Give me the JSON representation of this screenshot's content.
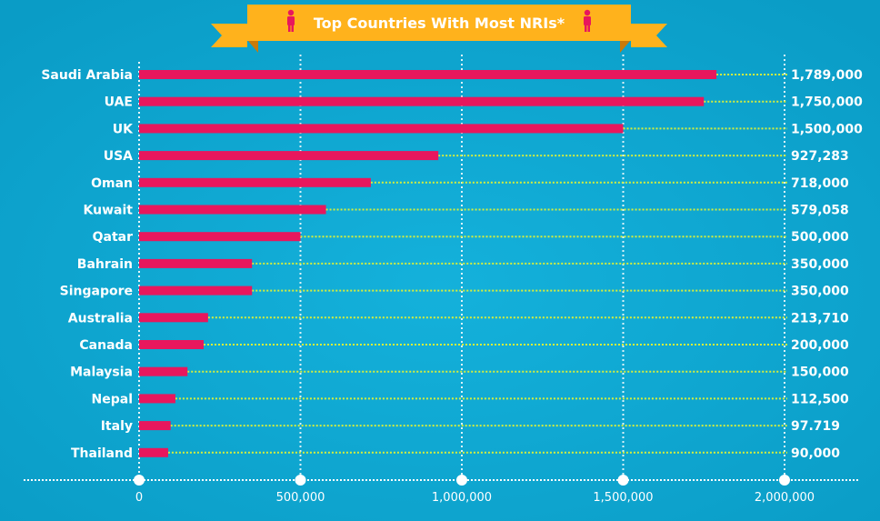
{
  "chart_data": {
    "type": "bar",
    "orientation": "horizontal",
    "title": "Top Countries With Most NRIs*",
    "categories": [
      "Saudi Arabia",
      "UAE",
      "UK",
      "USA",
      "Oman",
      "Kuwait",
      "Qatar",
      "Bahrain",
      "Singapore",
      "Australia",
      "Canada",
      "Malaysia",
      "Nepal",
      "Italy",
      "Thailand"
    ],
    "values": [
      1789000,
      1750000,
      1500000,
      927283,
      718000,
      579058,
      500000,
      350000,
      350000,
      213710,
      200000,
      150000,
      112500,
      97719,
      90000
    ],
    "value_labels": [
      "1,789,000",
      "1,750,000",
      "1,500,000",
      "927,283",
      "718,000",
      "579,058",
      "500,000",
      "350,000",
      "350,000",
      "213,710",
      "200,000",
      "150,000",
      "112,500",
      "97.719",
      "90,000"
    ],
    "xlim": [
      0,
      2000000
    ],
    "xticks": [
      0,
      500000,
      1000000,
      1500000,
      2000000
    ],
    "xtick_labels": [
      "0",
      "500,000",
      "1,000,000",
      "1,500,000",
      "2,000,000"
    ],
    "grid": true,
    "colors": {
      "background": "#0fa6cf",
      "bar": "#e8175d",
      "leader": "#d8ef3a",
      "banner": "#ffb21c",
      "banner_dark": "#d8860e",
      "icon": "#e8175d",
      "text": "#ffffff"
    }
  },
  "icons": {
    "title_left": "person-icon",
    "title_right": "person-icon"
  }
}
